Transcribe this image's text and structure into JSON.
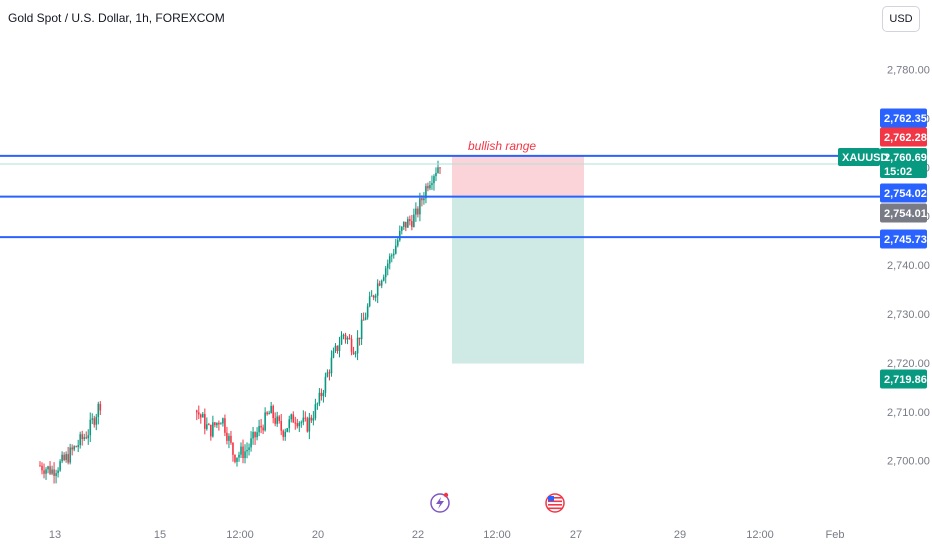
{
  "header": {
    "title": "Gold Spot / U.S. Dollar, 1h, FOREXCOM",
    "currency_button": "USD"
  },
  "colors": {
    "up": "#089981",
    "down": "#f23645",
    "level_line": "#2962ff",
    "target_zone": "#cfe9e5",
    "stop_zone": "#fad4d8",
    "last_price": "#089981"
  },
  "icons": [
    "lightning-event-icon",
    "us-flag-event-icon"
  ],
  "chart_data": {
    "type": "candlestick",
    "symbol": "XAUUSD",
    "timeframe": "1h",
    "ylim": [
      2694,
      2784
    ],
    "y_ticks": [
      2700,
      2710,
      2720,
      2730,
      2740,
      2750,
      2760,
      2770,
      2780
    ],
    "y_tick_labels": [
      "2,700.00",
      "2,710.00",
      "2,720.00",
      "2,730.00",
      "2,740.00",
      "2,750.00",
      "2,760.00",
      "2,770.00",
      "2,780.00"
    ],
    "x_tick_labels": [
      "13",
      "15",
      "12:00",
      "20",
      "22",
      "12:00",
      "27",
      "29",
      "12:00",
      "Feb"
    ],
    "close_path": [
      [
        2698,
        2699
      ],
      [
        2697,
        2698
      ],
      [
        2699,
        2700
      ],
      [
        2700,
        2703
      ],
      [
        2702,
        2706
      ],
      [
        2705,
        2712
      ],
      [
        2710,
        2718
      ],
      [
        2716,
        2721
      ],
      [
        2719,
        2717
      ],
      [
        2718,
        2721
      ],
      [
        2716,
        2715
      ],
      [
        2717,
        2719
      ],
      [
        2713,
        2711
      ],
      [
        2712,
        2710
      ],
      [
        2709,
        2706
      ],
      [
        2707,
        2709
      ],
      [
        2703,
        2701
      ],
      [
        2700,
        2702
      ],
      [
        2704,
        2706
      ],
      [
        2707,
        2710
      ],
      [
        2708,
        2706
      ],
      [
        2706,
        2709
      ],
      [
        2708,
        2707
      ],
      [
        2709,
        2712
      ],
      [
        2716,
        2720
      ],
      [
        2722,
        2726
      ],
      [
        2726,
        2723
      ],
      [
        2728,
        2731
      ],
      [
        2734,
        2737
      ],
      [
        2739,
        2742
      ],
      [
        2744,
        2748
      ],
      [
        2752,
        2750
      ],
      [
        2754,
        2757
      ],
      [
        2760,
        2761
      ]
    ],
    "price_levels": [
      {
        "label": "2,762.35",
        "value": 2762.35,
        "color": "#2962ff"
      },
      {
        "label": "2,762.28",
        "value": 2762.28,
        "color": "#f23645"
      },
      {
        "label": "2,760.69",
        "value": 2760.69,
        "color": "#089981",
        "symbol": "XAUUSD",
        "countdown": "15:02"
      },
      {
        "label": "2,754.02",
        "value": 2754.02,
        "color": "#2962ff"
      },
      {
        "label": "2,754.01",
        "value": 2754.01,
        "color": "#787b86"
      },
      {
        "label": "2,745.73",
        "value": 2745.73,
        "color": "#2962ff"
      },
      {
        "label": "2,719.86",
        "value": 2719.86,
        "color": "#089981"
      }
    ],
    "horizontal_lines": [
      2762.35,
      2754.02,
      2745.73
    ],
    "position_tool": {
      "entry": 2754.02,
      "stop": 2762.28,
      "target": 2719.86
    },
    "annotation": "bullish range"
  }
}
